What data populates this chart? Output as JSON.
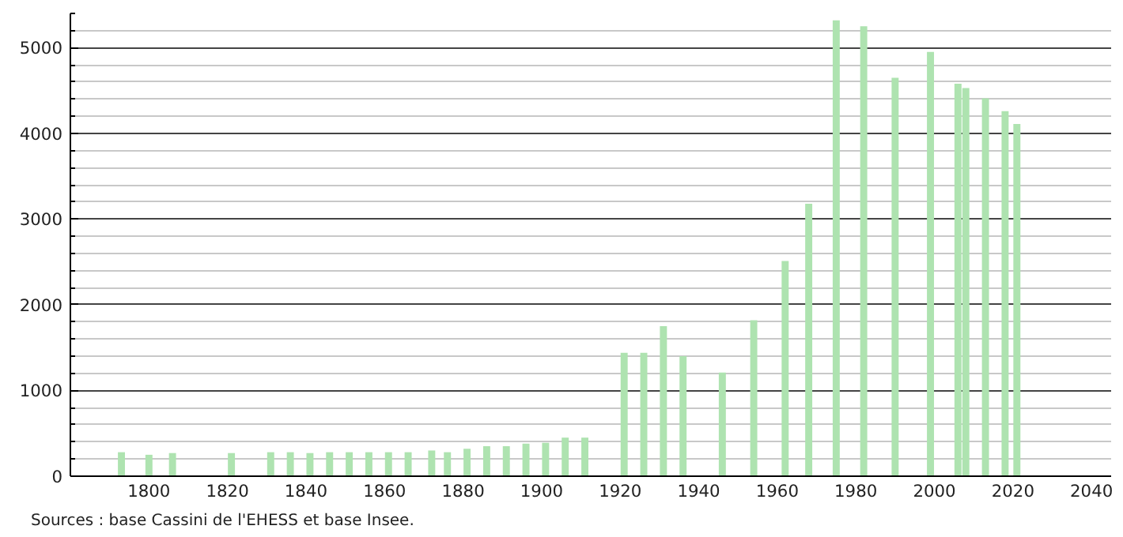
{
  "chart_data": {
    "type": "bar",
    "x": [
      1793,
      1800,
      1806,
      1821,
      1831,
      1836,
      1841,
      1846,
      1851,
      1856,
      1861,
      1866,
      1872,
      1876,
      1881,
      1886,
      1891,
      1896,
      1901,
      1906,
      1911,
      1921,
      1926,
      1931,
      1936,
      1946,
      1954,
      1962,
      1968,
      1975,
      1982,
      1990,
      1999,
      2006,
      2008,
      2013,
      2018,
      2021
    ],
    "values": [
      280,
      250,
      270,
      270,
      280,
      280,
      270,
      280,
      280,
      280,
      280,
      280,
      300,
      280,
      320,
      350,
      350,
      380,
      390,
      450,
      450,
      1440,
      1440,
      1750,
      1400,
      1210,
      1820,
      2510,
      3180,
      5320,
      5250,
      4650,
      4950,
      4580,
      4530,
      4410,
      4260,
      4110
    ],
    "color": "#aee3b0",
    "xlim": [
      1780,
      2045
    ],
    "ylim": [
      0,
      5400
    ],
    "xticks": [
      1800,
      1820,
      1840,
      1860,
      1880,
      1900,
      1920,
      1940,
      1960,
      1980,
      2000,
      2020,
      2040
    ],
    "yticks": [
      0,
      1000,
      2000,
      3000,
      4000,
      5000
    ],
    "grid": "y",
    "annotations": [
      "Sources : base Cassini de l'EHESS et base Insee."
    ]
  }
}
